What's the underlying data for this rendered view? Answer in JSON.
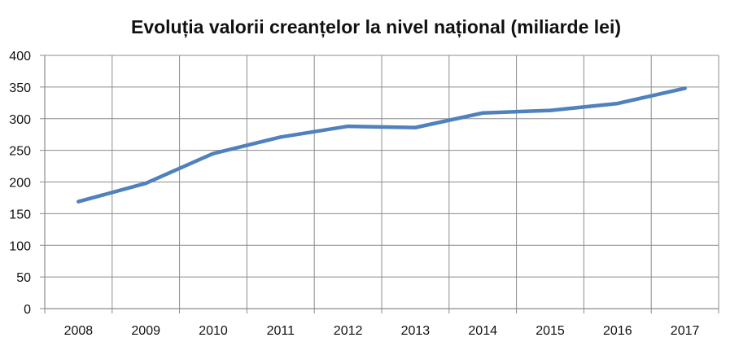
{
  "chart_data": {
    "type": "line",
    "title": "Evoluția valorii creanțelor la nivel național (miliarde lei)",
    "xlabel": "",
    "ylabel": "",
    "categories": [
      "2008",
      "2009",
      "2010",
      "2011",
      "2012",
      "2013",
      "2014",
      "2015",
      "2016",
      "2017"
    ],
    "series": [
      {
        "values": [
          169,
          198,
          245,
          271,
          288,
          286,
          309,
          313,
          324,
          348
        ]
      }
    ],
    "ylim": [
      0,
      400
    ],
    "yticks": [
      0,
      50,
      100,
      150,
      200,
      250,
      300,
      350,
      400
    ],
    "grid": true,
    "legend": "none",
    "colors": {
      "line": "#4f81bd",
      "grid": "#8c8c8c",
      "axis": "#8c8c8c",
      "text": "#111111"
    }
  }
}
